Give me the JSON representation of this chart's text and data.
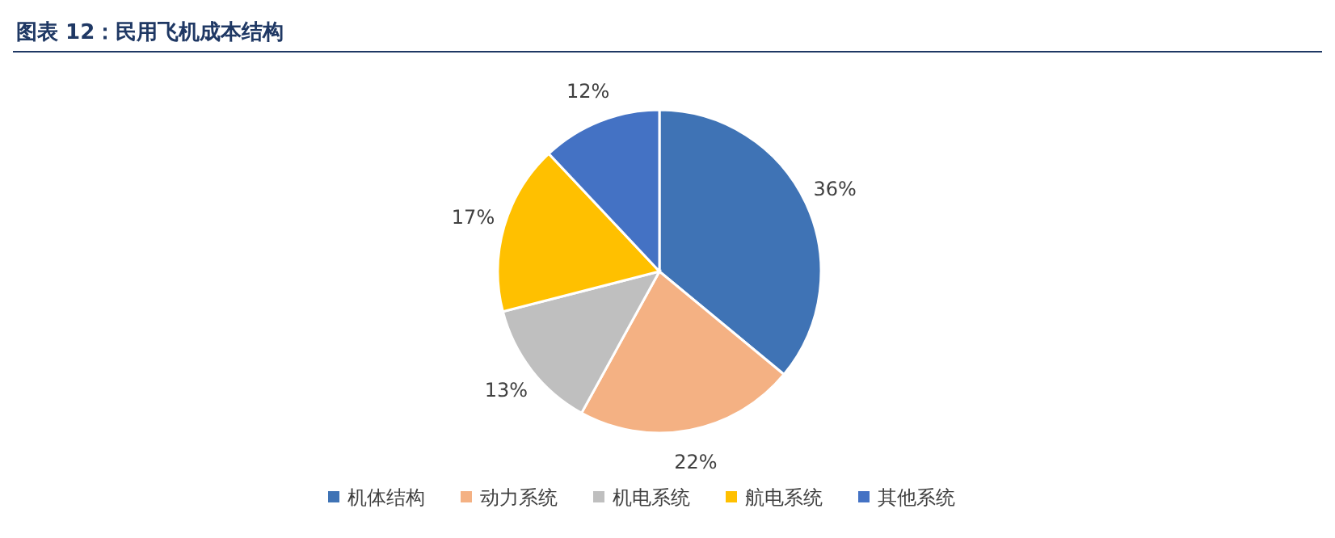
{
  "chart_data": {
    "type": "pie",
    "title": "图表 12：民用飞机成本结构",
    "categories": [
      "机体结构",
      "动力系统",
      "机电系统",
      "航电系统",
      "其他系统"
    ],
    "values": [
      36,
      22,
      13,
      17,
      12
    ],
    "value_labels": [
      "36%",
      "22%",
      "13%",
      "17%",
      "12%"
    ],
    "colors": [
      "#3f73b5",
      "#f4b183",
      "#bfbfbf",
      "#ffc000",
      "#4472c4"
    ],
    "legend": "bottom"
  }
}
